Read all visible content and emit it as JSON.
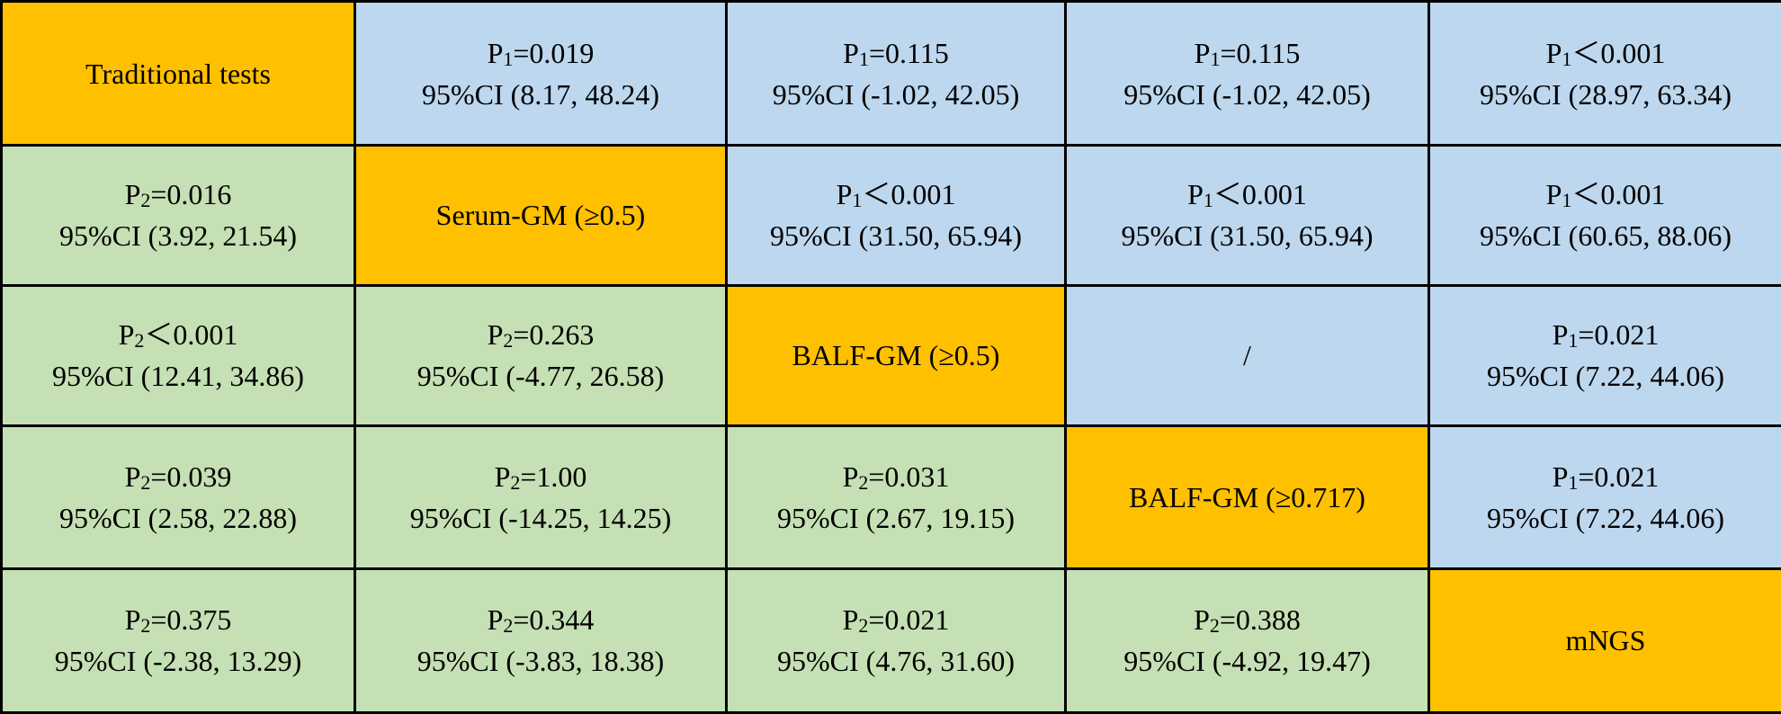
{
  "chart_data": {
    "type": "table",
    "colors": {
      "diagonal": "#FFC000",
      "upper": "#BDD7EE",
      "lower": "#C5E0B4"
    },
    "rows": [
      [
        {
          "kind": "diag",
          "label": "Traditional tests"
        },
        {
          "kind": "upper",
          "p_letter": "P",
          "p_index": "1",
          "p_rest": "=0.019",
          "ci": "95%CI (8.17, 48.24)"
        },
        {
          "kind": "upper",
          "p_letter": "P",
          "p_index": "1",
          "p_rest": "=0.115",
          "ci": "95%CI (-1.02, 42.05)"
        },
        {
          "kind": "upper",
          "p_letter": "P",
          "p_index": "1",
          "p_rest": "=0.115",
          "ci": "95%CI (-1.02, 42.05)"
        },
        {
          "kind": "upper",
          "p_letter": "P",
          "p_index": "1",
          "p_rest": "＜0.001",
          "ci": "95%CI (28.97, 63.34)"
        }
      ],
      [
        {
          "kind": "lower",
          "p_letter": "P",
          "p_index": "2",
          "p_rest": "=0.016",
          "ci": "95%CI (3.92, 21.54)"
        },
        {
          "kind": "diag",
          "label": "Serum-GM (≥0.5)"
        },
        {
          "kind": "upper",
          "p_letter": "P",
          "p_index": "1",
          "p_rest": "＜0.001",
          "ci": "95%CI (31.50, 65.94)"
        },
        {
          "kind": "upper",
          "p_letter": "P",
          "p_index": "1",
          "p_rest": "＜0.001",
          "ci": "95%CI (31.50, 65.94)"
        },
        {
          "kind": "upper",
          "p_letter": "P",
          "p_index": "1",
          "p_rest": "＜0.001",
          "ci": "95%CI (60.65, 88.06)"
        }
      ],
      [
        {
          "kind": "lower",
          "p_letter": "P",
          "p_index": "2",
          "p_rest": "＜0.001",
          "ci": "95%CI (12.41, 34.86)"
        },
        {
          "kind": "lower",
          "p_letter": "P",
          "p_index": "2",
          "p_rest": "=0.263",
          "ci": "95%CI (-4.77, 26.58)"
        },
        {
          "kind": "diag",
          "label": "BALF-GM (≥0.5)"
        },
        {
          "kind": "upper",
          "slash": "/"
        },
        {
          "kind": "upper",
          "p_letter": "P",
          "p_index": "1",
          "p_rest": "=0.021",
          "ci": "95%CI (7.22, 44.06)"
        }
      ],
      [
        {
          "kind": "lower",
          "p_letter": "P",
          "p_index": "2",
          "p_rest": "=0.039",
          "ci": "95%CI (2.58, 22.88)"
        },
        {
          "kind": "lower",
          "p_letter": "P",
          "p_index": "2",
          "p_rest": "=1.00",
          "ci": "95%CI (-14.25, 14.25)"
        },
        {
          "kind": "lower",
          "p_letter": "P",
          "p_index": "2",
          "p_rest": "=0.031",
          "ci": "95%CI (2.67, 19.15)"
        },
        {
          "kind": "diag",
          "label": "BALF-GM (≥0.717)"
        },
        {
          "kind": "upper",
          "p_letter": "P",
          "p_index": "1",
          "p_rest": "=0.021",
          "ci": "95%CI (7.22, 44.06)"
        }
      ],
      [
        {
          "kind": "lower",
          "p_letter": "P",
          "p_index": "2",
          "p_rest": "=0.375",
          "ci": "95%CI (-2.38, 13.29)"
        },
        {
          "kind": "lower",
          "p_letter": "P",
          "p_index": "2",
          "p_rest": "=0.344",
          "ci": "95%CI (-3.83, 18.38)"
        },
        {
          "kind": "lower",
          "p_letter": "P",
          "p_index": "2",
          "p_rest": "=0.021",
          "ci": "95%CI (4.76, 31.60)"
        },
        {
          "kind": "lower",
          "p_letter": "P",
          "p_index": "2",
          "p_rest": "=0.388",
          "ci": "95%CI (-4.92, 19.47)"
        },
        {
          "kind": "diag",
          "label": "mNGS"
        }
      ]
    ]
  }
}
